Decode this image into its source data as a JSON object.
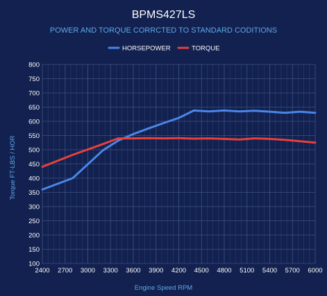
{
  "chart_data": {
    "type": "line",
    "title": "BPMS427LS",
    "subtitle": "POWER AND TORQUE CORRCTED TO STANDARD CODITIONS",
    "xlabel": "Engine Speed RPM",
    "ylabel": "Torque FT-LBS / HOR",
    "x_ticks": [
      2400,
      2700,
      3000,
      3300,
      3600,
      3900,
      4200,
      4500,
      4800,
      5100,
      5400,
      5700,
      6000
    ],
    "xlim": [
      2400,
      6000
    ],
    "ylim": [
      100,
      800
    ],
    "y_ticks": [
      100,
      150,
      200,
      250,
      300,
      350,
      400,
      450,
      500,
      550,
      600,
      650,
      700,
      750,
      800
    ],
    "grid": true,
    "legend_position": "top-center",
    "series": [
      {
        "name": "HORSEPOWER",
        "color": "#4a86e8",
        "x": [
          2400,
          2800,
          3200,
          3400,
          3600,
          3800,
          4000,
          4200,
          4400,
          4600,
          4800,
          5000,
          5200,
          5400,
          5600,
          5800,
          6000
        ],
        "values": [
          360,
          400,
          498,
          532,
          555,
          575,
          594,
          612,
          638,
          635,
          638,
          635,
          637,
          634,
          630,
          634,
          630
        ]
      },
      {
        "name": "TORQUE",
        "color": "#e8403e",
        "x": [
          2400,
          2800,
          3200,
          3400,
          3600,
          3800,
          4000,
          4200,
          4400,
          4600,
          4800,
          5000,
          5200,
          5400,
          5600,
          5800,
          6000
        ],
        "values": [
          440,
          482,
          520,
          540,
          540,
          541,
          540,
          541,
          539,
          540,
          538,
          536,
          540,
          538,
          535,
          530,
          525
        ]
      }
    ]
  }
}
